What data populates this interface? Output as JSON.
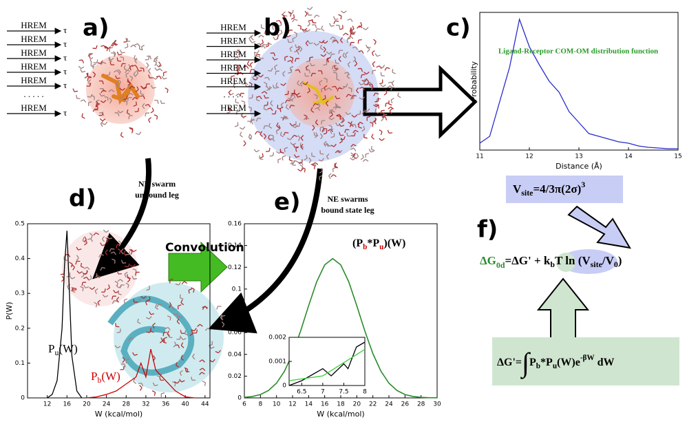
{
  "panel_a": {
    "label": "a)",
    "hrem": [
      "HREM",
      "HREM",
      "HREM",
      "HREM",
      "HREM",
      ". . . . .",
      "HREM"
    ],
    "tau": "τ"
  },
  "panel_b": {
    "label": "b)",
    "hrem": [
      "HREM",
      "HREM",
      "HREM",
      "HREM",
      "HREM",
      ". . . . .",
      "HREM"
    ]
  },
  "panel_c": {
    "label": "c)",
    "title": "Ligand-Receptor  COM-OM distribution function",
    "xlabel": "Distance (Å)",
    "ylabel": "Probability",
    "xlim": [
      11,
      15
    ],
    "xticks": [
      11,
      12,
      13,
      14,
      15
    ],
    "ylim": [
      0,
      1
    ],
    "series": [
      {
        "color": "#2a2acc",
        "x": [
          11.0,
          11.2,
          11.4,
          11.6,
          11.8,
          12.0,
          12.2,
          12.4,
          12.6,
          12.8,
          13.0,
          13.2,
          13.4,
          13.6,
          13.8,
          14.0,
          14.2,
          14.4,
          14.6,
          14.8,
          15.0
        ],
        "values": [
          0.05,
          0.1,
          0.35,
          0.6,
          0.95,
          0.75,
          0.62,
          0.5,
          0.42,
          0.28,
          0.2,
          0.12,
          0.1,
          0.08,
          0.06,
          0.05,
          0.03,
          0.02,
          0.015,
          0.01,
          0.01
        ]
      }
    ]
  },
  "vsite": [
    "V",
    "site",
    "=4/3π(2σ)",
    "3"
  ],
  "panel_d": {
    "label": "d)",
    "note": [
      "NE swarm",
      "unbound leg"
    ],
    "ylabel": "P(W)",
    "xlabel": "W (kcal/mol)",
    "xlim": [
      8,
      45
    ],
    "xticks": [
      12,
      16,
      20,
      24,
      28,
      32,
      36,
      40,
      44
    ],
    "ylim": [
      0,
      0.5
    ],
    "yticks": [
      0,
      0.1,
      0.2,
      0.3,
      0.4,
      0.5
    ],
    "pu_label": [
      "P",
      "u",
      "(W)"
    ],
    "pb_label": [
      "P",
      "b",
      "(W)"
    ],
    "series": [
      {
        "color": "#000000",
        "x": [
          12,
          13,
          14,
          15,
          15.5,
          16,
          16.5,
          17,
          18,
          19
        ],
        "values": [
          0,
          0.01,
          0.05,
          0.2,
          0.38,
          0.48,
          0.3,
          0.12,
          0.02,
          0
        ]
      },
      {
        "color": "#cc0000",
        "x": [
          20,
          22,
          24,
          26,
          28,
          30,
          31,
          32,
          33,
          34,
          36,
          38,
          40,
          42
        ],
        "values": [
          0,
          0.003,
          0.01,
          0.02,
          0.04,
          0.06,
          0.1,
          0.06,
          0.14,
          0.08,
          0.05,
          0.02,
          0.003,
          0
        ]
      }
    ]
  },
  "convolution": "Convolution",
  "panel_e": {
    "label": "e)",
    "note": [
      "NE swarms",
      "bound state leg"
    ],
    "xlabel": "W (kcal/mol)",
    "legend": [
      "(P",
      "b",
      "*P",
      "u",
      ")(W)"
    ],
    "xlim": [
      6,
      30
    ],
    "xticks": [
      6,
      8,
      10,
      12,
      14,
      16,
      18,
      20,
      22,
      24,
      26,
      28,
      30
    ],
    "ylim": [
      0,
      0.16
    ],
    "yticks": [
      0,
      0.02,
      0.04,
      0.06,
      0.08,
      0.1,
      0.12,
      0.14,
      0.16
    ],
    "series": [
      {
        "color": "#2a8a2a",
        "x": [
          6,
          7,
          8,
          9,
          10,
          11,
          12,
          13,
          14,
          15,
          16,
          17,
          18,
          19,
          20,
          21,
          22,
          23,
          24,
          25,
          26,
          27,
          28,
          29,
          30
        ],
        "values": [
          0.0005,
          0.0013,
          0.0031,
          0.0068,
          0.0135,
          0.0246,
          0.0407,
          0.0614,
          0.0847,
          0.1066,
          0.1222,
          0.128,
          0.1222,
          0.1066,
          0.0847,
          0.0614,
          0.0407,
          0.0246,
          0.0135,
          0.0068,
          0.0031,
          0.0013,
          0.0005,
          0.0002,
          0.0001
        ]
      }
    ],
    "inset": {
      "xlim": [
        6.2,
        8
      ],
      "xticks": [
        6.5,
        7,
        7.5,
        8
      ],
      "ylim": [
        0,
        0.002
      ],
      "yticks": [
        0,
        0.001,
        0.002
      ],
      "series": [
        {
          "color": "#000000",
          "x": [
            6.2,
            6.5,
            7,
            7.2,
            7.5,
            7.6,
            7.8,
            8
          ],
          "values": [
            0,
            0.0002,
            0.0007,
            0.0004,
            0.0009,
            0.0007,
            0.0016,
            0.0018
          ]
        },
        {
          "color": "#33cc33",
          "x": [
            6.2,
            7,
            8
          ],
          "values": [
            0.0002,
            0.0004,
            0.0015
          ]
        }
      ]
    }
  },
  "panel_f": {
    "label": "f)",
    "equation": [
      "ΔG",
      "0d",
      "=ΔG' + k",
      "b",
      "T ln (V",
      "site",
      "/V",
      "0",
      ")"
    ],
    "integral": [
      "ΔG'=",
      "∫",
      "P",
      "b",
      "*P",
      "u",
      "(W)e",
      "-βW",
      " dW"
    ]
  }
}
